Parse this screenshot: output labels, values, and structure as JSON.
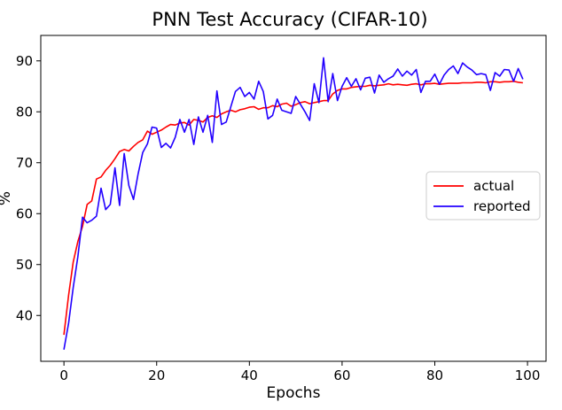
{
  "chart_data": {
    "type": "line",
    "title": "PNN Test Accuracy (CIFAR-10)",
    "xlabel": "Epochs",
    "ylabel": "%",
    "xlim": [
      -5,
      104
    ],
    "ylim": [
      31,
      95
    ],
    "xticks": [
      0,
      20,
      40,
      60,
      80,
      100
    ],
    "yticks": [
      40,
      50,
      60,
      70,
      80,
      90
    ],
    "grid": false,
    "legend_position": "right",
    "series": [
      {
        "name": "actual",
        "color": "#ff0000",
        "x": [
          0,
          1,
          2,
          3,
          4,
          5,
          6,
          7,
          8,
          9,
          10,
          11,
          12,
          13,
          14,
          15,
          16,
          17,
          18,
          19,
          20,
          21,
          22,
          23,
          24,
          25,
          26,
          27,
          28,
          29,
          30,
          31,
          32,
          33,
          34,
          35,
          36,
          37,
          38,
          39,
          40,
          41,
          42,
          43,
          44,
          45,
          46,
          47,
          48,
          49,
          50,
          51,
          52,
          53,
          54,
          55,
          56,
          57,
          58,
          59,
          60,
          61,
          62,
          63,
          64,
          65,
          66,
          67,
          68,
          69,
          70,
          71,
          72,
          73,
          74,
          75,
          76,
          77,
          78,
          79,
          80,
          81,
          82,
          83,
          84,
          85,
          86,
          87,
          88,
          89,
          90,
          91,
          92,
          93,
          94,
          95,
          96,
          97,
          98,
          99
        ],
        "values": [
          36.2,
          44.0,
          50.5,
          54.5,
          57.5,
          61.8,
          62.5,
          66.8,
          67.2,
          68.5,
          69.5,
          70.8,
          72.2,
          72.6,
          72.3,
          73.2,
          74.0,
          74.5,
          76.2,
          75.6,
          76.0,
          76.4,
          77.0,
          77.5,
          77.4,
          77.8,
          77.9,
          77.4,
          78.5,
          78.3,
          78.0,
          78.9,
          79.2,
          78.9,
          79.6,
          80.0,
          80.3,
          80.0,
          80.4,
          80.6,
          80.9,
          81.0,
          80.5,
          80.8,
          80.8,
          81.2,
          81.0,
          81.5,
          81.7,
          81.1,
          81.4,
          81.8,
          82.0,
          81.6,
          81.8,
          82.0,
          82.2,
          82.2,
          83.5,
          84.2,
          84.5,
          84.5,
          84.8,
          84.9,
          85.0,
          85.0,
          85.2,
          85.1,
          85.2,
          85.3,
          85.5,
          85.3,
          85.4,
          85.3,
          85.2,
          85.4,
          85.5,
          85.3,
          85.5,
          85.5,
          85.6,
          85.4,
          85.5,
          85.6,
          85.6,
          85.6,
          85.7,
          85.7,
          85.7,
          85.8,
          85.8,
          85.7,
          85.9,
          85.9,
          85.8,
          85.9,
          85.9,
          86.0,
          85.8,
          85.7
        ]
      },
      {
        "name": "reported",
        "color": "#2200ff",
        "x": [
          0,
          1,
          2,
          3,
          4,
          5,
          6,
          7,
          8,
          9,
          10,
          11,
          12,
          13,
          14,
          15,
          16,
          17,
          18,
          19,
          20,
          21,
          22,
          23,
          24,
          25,
          26,
          27,
          28,
          29,
          30,
          31,
          32,
          33,
          34,
          35,
          36,
          37,
          38,
          39,
          40,
          41,
          42,
          43,
          44,
          45,
          46,
          47,
          48,
          49,
          50,
          51,
          52,
          53,
          54,
          55,
          56,
          57,
          58,
          59,
          60,
          61,
          62,
          63,
          64,
          65,
          66,
          67,
          68,
          69,
          70,
          71,
          72,
          73,
          74,
          75,
          76,
          77,
          78,
          79,
          80,
          81,
          82,
          83,
          84,
          85,
          86,
          87,
          88,
          89,
          90,
          91,
          92,
          93,
          94,
          95,
          96,
          97,
          98,
          99
        ],
        "values": [
          33.3,
          38.5,
          45.5,
          51.5,
          59.3,
          58.2,
          58.7,
          59.5,
          65.0,
          60.8,
          61.8,
          69.0,
          61.6,
          71.8,
          65.5,
          62.8,
          67.8,
          72.0,
          73.7,
          77.0,
          76.8,
          73.0,
          73.8,
          72.9,
          75.0,
          78.5,
          76.0,
          78.5,
          73.6,
          79.0,
          76.0,
          79.3,
          74.0,
          84.1,
          77.5,
          78.0,
          81.0,
          84.0,
          84.8,
          83.0,
          83.8,
          82.5,
          86.0,
          84.0,
          78.6,
          79.3,
          82.5,
          80.3,
          80.0,
          79.7,
          83.0,
          81.5,
          80.0,
          78.3,
          85.5,
          81.8,
          90.6,
          82.0,
          87.5,
          82.2,
          85.0,
          86.7,
          85.0,
          86.5,
          84.3,
          86.6,
          86.8,
          83.7,
          87.2,
          85.8,
          86.5,
          87.0,
          88.4,
          87.0,
          88.0,
          87.2,
          88.3,
          83.8,
          86.0,
          86.0,
          87.4,
          85.4,
          87.2,
          88.3,
          89.0,
          87.5,
          89.6,
          88.8,
          88.2,
          87.3,
          87.5,
          87.3,
          84.2,
          87.7,
          87.0,
          88.3,
          88.2,
          86.0,
          88.5,
          86.4
        ]
      }
    ]
  }
}
